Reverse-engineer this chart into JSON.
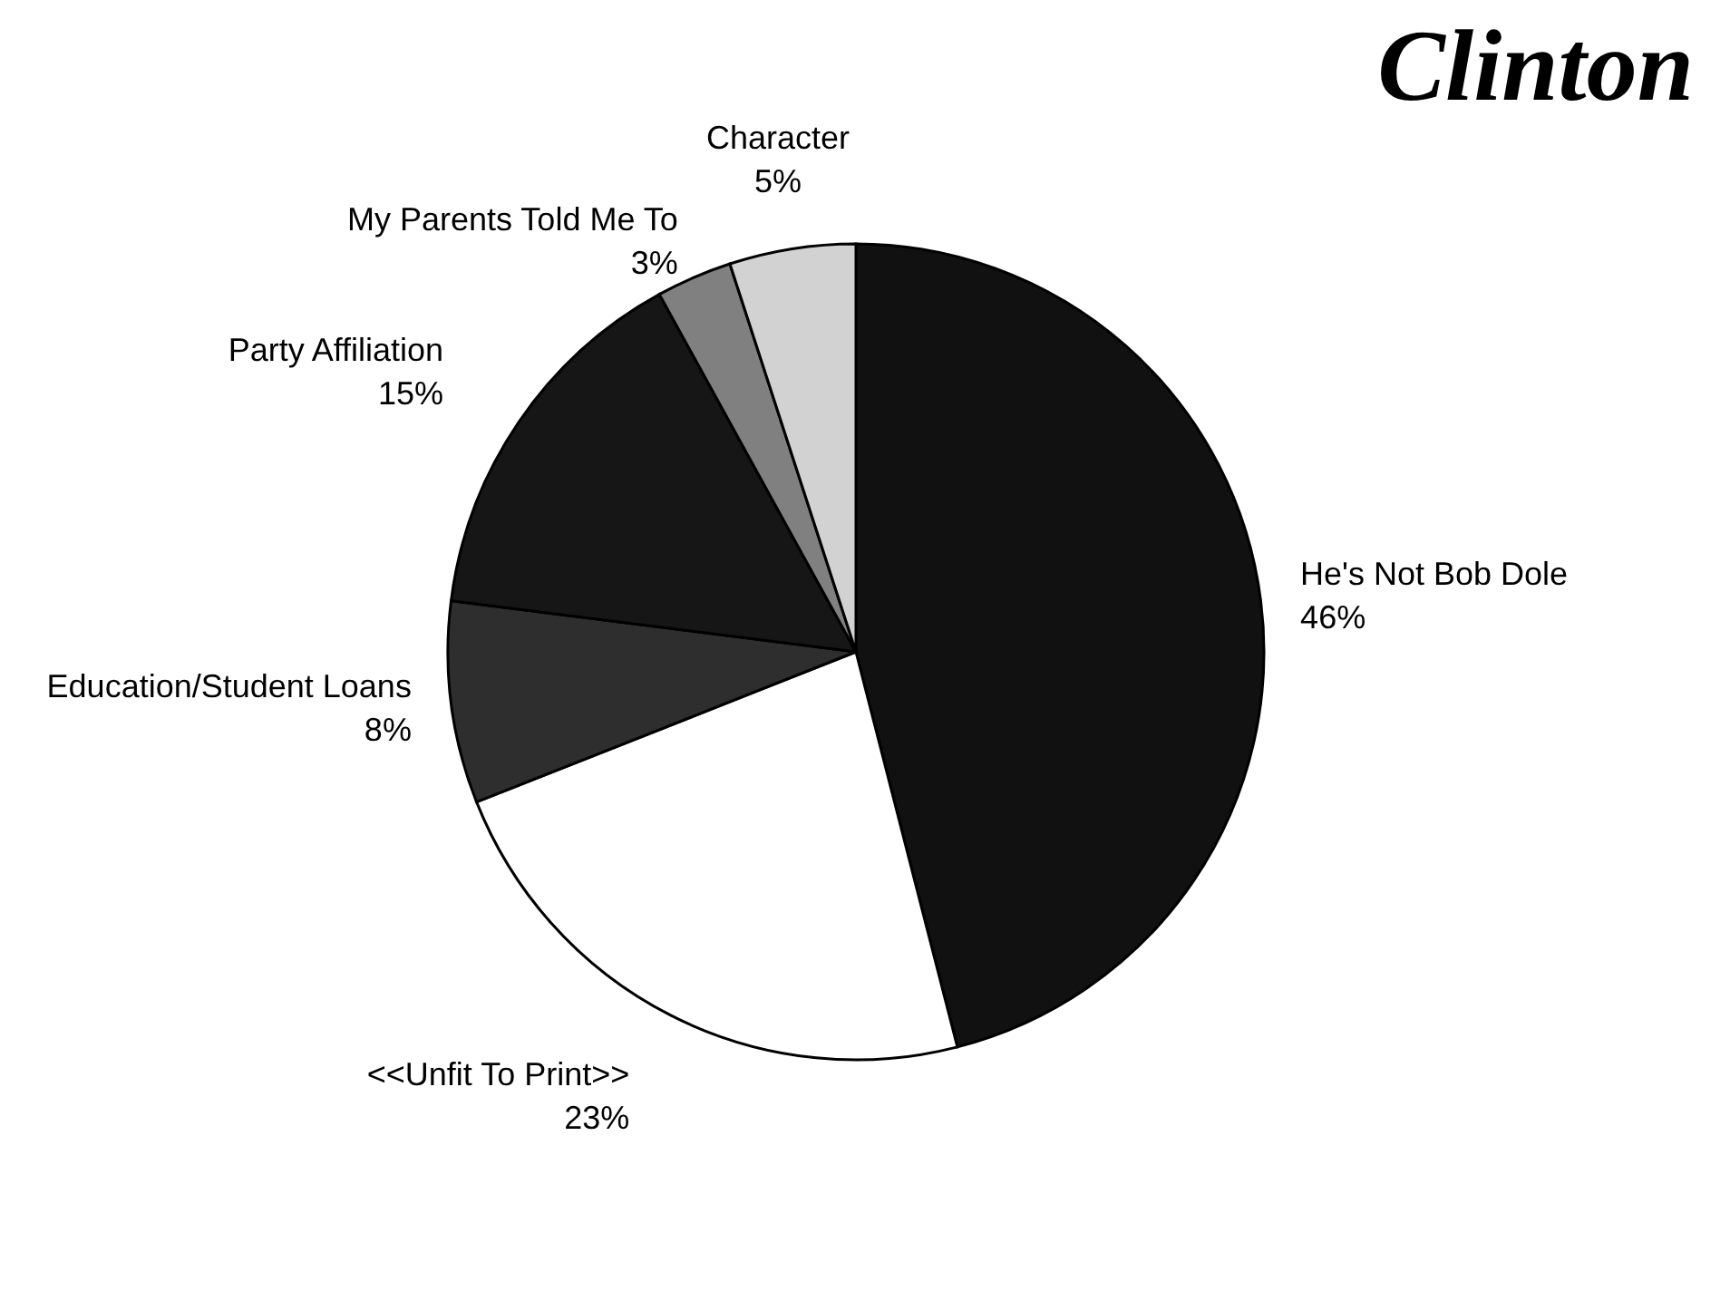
{
  "chart_data": {
    "type": "pie",
    "title": "Clinton",
    "categories": [
      "He's Not Bob Dole",
      "<<Unfit To Print>>",
      "Education/Student Loans",
      "Party  Affiliation",
      "My Parents Told Me To",
      "Character"
    ],
    "values": [
      46,
      23,
      8,
      15,
      3,
      5
    ],
    "value_labels": [
      "46%",
      "23%",
      "8%",
      "15%",
      "3%",
      "5%"
    ],
    "colors": [
      "#111111",
      "#ffffff",
      "#2e2e2e",
      "#161616",
      "#808080",
      "#d2d2d2"
    ],
    "legend": false
  }
}
